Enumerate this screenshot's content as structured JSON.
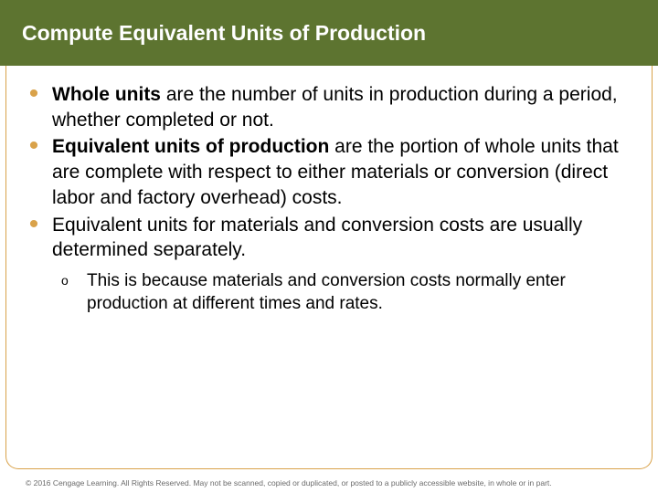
{
  "title": "Compute Equivalent Units of Production",
  "bullets": [
    {
      "bold": "Whole units",
      "rest": " are the number of units in production during a period, whether completed or not."
    },
    {
      "bold": "Equivalent units of production",
      "rest": " are the portion of whole units that are complete with respect to either materials or conversion (direct labor and factory overhead) costs."
    },
    {
      "bold": "",
      "rest": "Equivalent units for materials and conversion costs are usually determined separately."
    }
  ],
  "sub": {
    "text": "This is because materials and conversion costs normally enter production at different times and rates."
  },
  "footer": "© 2016 Cengage Learning. All Rights Reserved. May not be scanned, copied or duplicated, or posted to a publicly accessible website, in whole or in part.",
  "colors": {
    "header_bg": "#5d7430",
    "bullet_color": "#d9a24a",
    "border_color": "#d9a24a"
  }
}
